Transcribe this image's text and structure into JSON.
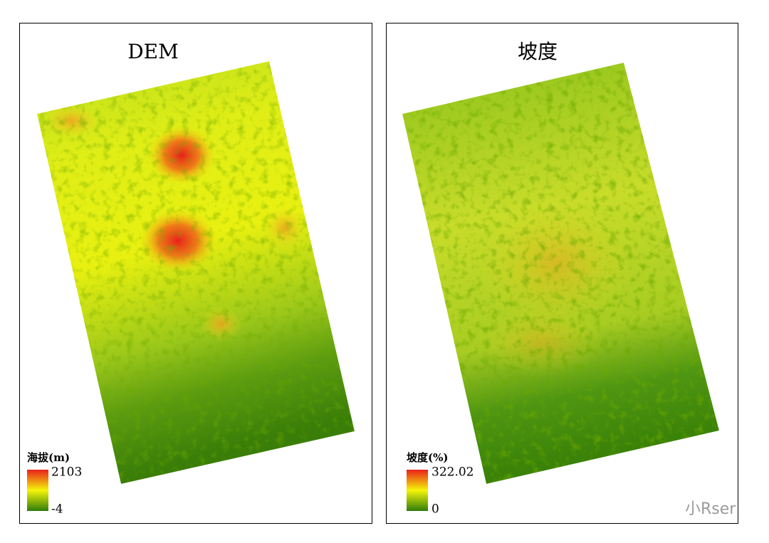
{
  "panels": [
    {
      "title": "DEM",
      "legend": {
        "title": "海拔(m)",
        "max": 2103,
        "min": -4
      }
    },
    {
      "title": "坡度",
      "legend": {
        "title": "坡度(%)",
        "max": 322.02,
        "min": 0
      }
    }
  ],
  "watermark": "小Rser"
}
